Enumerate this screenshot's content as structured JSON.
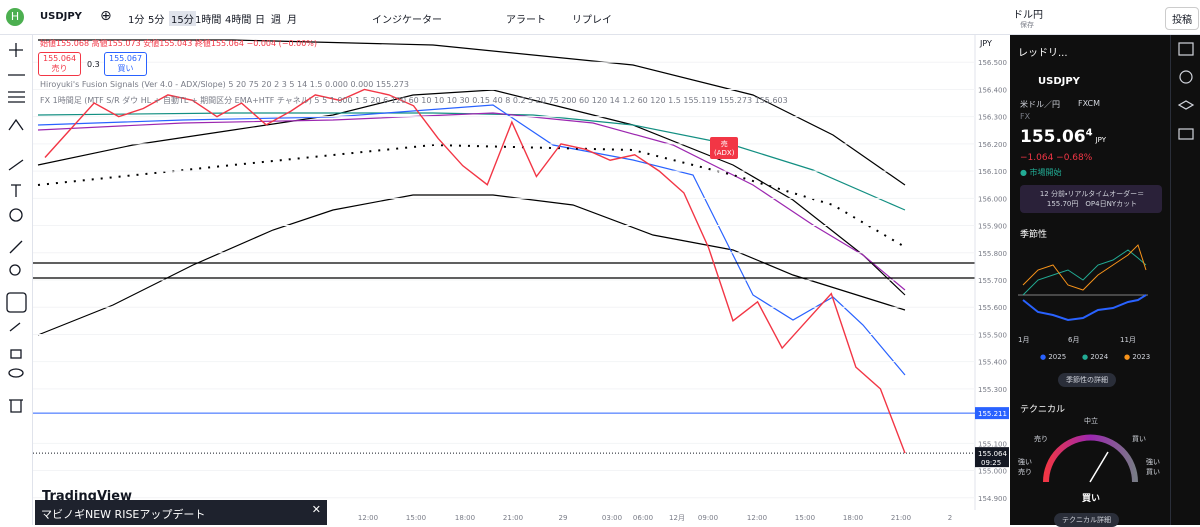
{
  "toolbar": {
    "symbol": "USDJPY",
    "intervals": [
      "1分",
      "5分",
      "15分",
      "1時間",
      "4時間",
      "日",
      "週",
      "月"
    ],
    "indicators": "インジケーター",
    "alert": "アラート",
    "replay": "リプレイ",
    "layout_name": "ドル円",
    "layout_state": "保存",
    "publish": "投稿"
  },
  "legend": {
    "ohlc": "始値155.068 高値155.073 安値155.043 終値155.064 −0.004 (−0.00%)",
    "sell_price": "155.064",
    "sell": "売り",
    "spread": "0.3",
    "buy_price": "155.067",
    "buy": "買い",
    "indicator1": "Hiroyuki's Fusion Signals (Ver 4.0 - ADX/Slope) 5 20 75 20 2 3 5 14 1.5 0.000 0.000 155.273",
    "indicator2": "FX 1時間足 (MTF S/R ダウ HL + 自動TL + 期間区分 EMA+HTF チャネル) 5 5 1.000 1 5 20 6 120 60 10 10 10 30 0.15 40 8 0.2 5 20 75 200 60 120 14 1.2 60 120 1.5 155.119 155.273 155.603",
    "currency": "JPY"
  },
  "chart": {
    "ylim": [
      154.8,
      156.6
    ],
    "price_ticks": [
      {
        "value": 156.5,
        "label": "156.500"
      },
      {
        "value": 156.4,
        "label": "156.400"
      },
      {
        "value": 156.3,
        "label": "156.300"
      },
      {
        "value": 156.2,
        "label": "156.200"
      },
      {
        "value": 156.1,
        "label": "156.100"
      },
      {
        "value": 156.0,
        "label": "156.000"
      },
      {
        "value": 155.9,
        "label": "155.900"
      },
      {
        "value": 155.8,
        "label": "155.800"
      },
      {
        "value": 155.7,
        "label": "155.700"
      },
      {
        "value": 155.6,
        "label": "155.600"
      },
      {
        "value": 155.5,
        "label": "155.500"
      },
      {
        "value": 155.4,
        "label": "155.400"
      },
      {
        "value": 155.3,
        "label": "155.300"
      },
      {
        "value": 155.1,
        "label": "155.100"
      },
      {
        "value": 155.0,
        "label": "155.000"
      },
      {
        "value": 154.9,
        "label": "154.900"
      }
    ],
    "time_labels": [
      "12:00",
      "15:00",
      "18:00",
      "21:00",
      "29",
      "03:00",
      "06:00",
      "12月",
      "09:00",
      "12:00",
      "15:00",
      "18:00",
      "21:00",
      "2"
    ],
    "close": [
      156.15,
      156.25,
      156.35,
      156.3,
      156.33,
      156.38,
      156.36,
      156.3,
      156.35,
      156.27,
      156.32,
      156.38,
      156.36,
      156.4,
      156.38,
      156.34,
      156.22,
      156.12,
      156.05,
      156.28,
      156.08,
      156.2,
      156.18,
      156.14,
      156.16,
      156.1,
      156.02,
      155.82,
      155.55,
      155.62,
      155.45,
      155.55,
      155.65,
      155.38,
      155.3,
      155.064
    ],
    "alert_line": 155.211,
    "last_price": 155.064,
    "countdown": "09:25",
    "signal": [
      "売",
      "(ADX)"
    ]
  },
  "brand": "TradingView",
  "ad": "マビノギNEW RISEアップデート",
  "panel": {
    "watchlist": "レッドリ...",
    "symbol": "USDJPY",
    "description": "米ドル／円",
    "exchange": "FXCM",
    "market": "FX",
    "price_main": "155.06",
    "price_last_digit": "4",
    "currency": "JPY",
    "change": "−1.064  −0.68%",
    "status": "市場開始",
    "news": "12 分前・リアルタイムオーダー＝155.70円　OP4日NYカット",
    "seasonality": "季節性",
    "months": [
      "1月",
      "6月",
      "11月"
    ],
    "years": [
      {
        "name": "2025",
        "color": "#2962ff"
      },
      {
        "name": "2024",
        "color": "#22ab94"
      },
      {
        "name": "2023",
        "color": "#f7931a"
      }
    ],
    "seasonality_details": "季節性の詳細",
    "technicals": "テクニカル",
    "gauge": {
      "neutral": "中立",
      "sell": "売り",
      "buy": "買い",
      "strong_sell": "強い売り",
      "strong_buy": "強い買い",
      "result": "買い"
    },
    "technicals_details": "テクニカル詳細"
  }
}
